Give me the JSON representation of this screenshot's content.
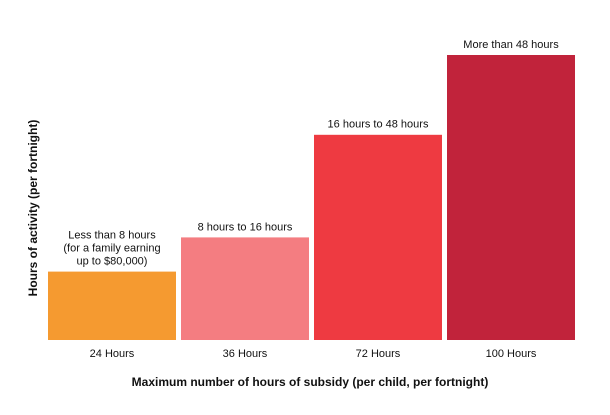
{
  "chart_data": {
    "type": "bar",
    "x_label": "Maximum number of hours of subsidy (per child, per fortnight)",
    "y_label": "Hours of activity (per fortnight)",
    "categories": [
      "24 Hours",
      "36 Hours",
      "72 Hours",
      "100 Hours"
    ],
    "values": [
      24,
      36,
      72,
      100
    ],
    "colors": [
      "#f59a30",
      "#f47d81",
      "#ee3a41",
      "#c1233b"
    ],
    "annotations": [
      [
        "Less than 8 hours",
        "(for a family earning",
        "up to $80,000)"
      ],
      [
        "8 hours to 16 hours"
      ],
      [
        "16 hours to 48 hours"
      ],
      [
        "More than 48 hours"
      ]
    ],
    "ylim": [
      0,
      100
    ]
  }
}
